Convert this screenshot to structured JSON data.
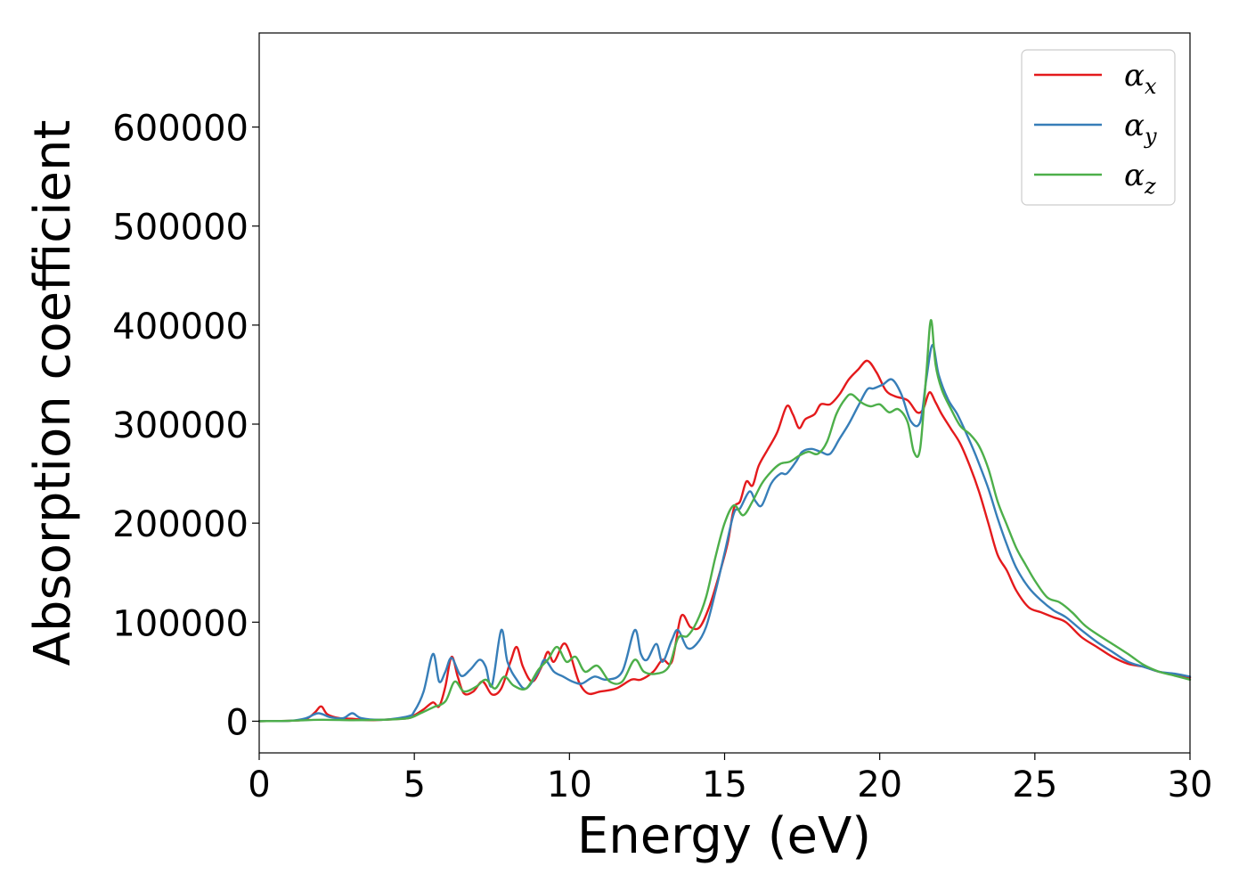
{
  "chart_data": {
    "type": "line",
    "title": "",
    "xlabel": "Energy (eV)",
    "ylabel": "Absorption coefficient",
    "xlim": [
      0,
      30
    ],
    "ylim": [
      -32000,
      695000
    ],
    "xticks": [
      0,
      5,
      10,
      15,
      20,
      25,
      30
    ],
    "yticks": [
      0,
      100000,
      200000,
      300000,
      400000,
      500000,
      600000
    ],
    "grid": false,
    "legend_position": "top-right",
    "series": [
      {
        "name": "α_x",
        "legend_base": "α",
        "legend_sub": "x",
        "color": "#e41a1c",
        "points": [
          [
            0,
            0
          ],
          [
            1.0,
            500
          ],
          [
            1.5,
            2000
          ],
          [
            1.8,
            9000
          ],
          [
            2.0,
            15000
          ],
          [
            2.2,
            7000
          ],
          [
            2.6,
            3000
          ],
          [
            3.0,
            2500
          ],
          [
            3.5,
            1000
          ],
          [
            4.0,
            1500
          ],
          [
            4.8,
            3000
          ],
          [
            5.0,
            6000
          ],
          [
            5.3,
            12000
          ],
          [
            5.6,
            19000
          ],
          [
            5.8,
            15000
          ],
          [
            6.0,
            35000
          ],
          [
            6.2,
            65000
          ],
          [
            6.4,
            45000
          ],
          [
            6.6,
            28000
          ],
          [
            6.9,
            30000
          ],
          [
            7.2,
            40000
          ],
          [
            7.5,
            27000
          ],
          [
            7.8,
            33000
          ],
          [
            8.1,
            60000
          ],
          [
            8.3,
            75000
          ],
          [
            8.5,
            55000
          ],
          [
            8.8,
            40000
          ],
          [
            9.1,
            55000
          ],
          [
            9.3,
            70000
          ],
          [
            9.5,
            60000
          ],
          [
            9.8,
            78000
          ],
          [
            10.0,
            70000
          ],
          [
            10.3,
            40000
          ],
          [
            10.6,
            28000
          ],
          [
            11.0,
            30000
          ],
          [
            11.5,
            33000
          ],
          [
            12.0,
            42000
          ],
          [
            12.3,
            42000
          ],
          [
            12.7,
            50000
          ],
          [
            13.0,
            62000
          ],
          [
            13.3,
            60000
          ],
          [
            13.6,
            106000
          ],
          [
            13.9,
            95000
          ],
          [
            14.2,
            95000
          ],
          [
            14.5,
            115000
          ],
          [
            14.8,
            145000
          ],
          [
            15.1,
            180000
          ],
          [
            15.3,
            215000
          ],
          [
            15.5,
            222000
          ],
          [
            15.7,
            242000
          ],
          [
            15.9,
            238000
          ],
          [
            16.1,
            258000
          ],
          [
            16.4,
            275000
          ],
          [
            16.7,
            292000
          ],
          [
            17.0,
            318000
          ],
          [
            17.2,
            310000
          ],
          [
            17.4,
            296000
          ],
          [
            17.6,
            305000
          ],
          [
            17.9,
            310000
          ],
          [
            18.1,
            320000
          ],
          [
            18.4,
            320000
          ],
          [
            18.7,
            330000
          ],
          [
            19.0,
            345000
          ],
          [
            19.3,
            355000
          ],
          [
            19.6,
            364000
          ],
          [
            19.9,
            352000
          ],
          [
            20.2,
            334000
          ],
          [
            20.5,
            328000
          ],
          [
            20.9,
            324000
          ],
          [
            21.2,
            312000
          ],
          [
            21.4,
            315000
          ],
          [
            21.6,
            332000
          ],
          [
            21.8,
            322000
          ],
          [
            22.0,
            310000
          ],
          [
            22.3,
            295000
          ],
          [
            22.6,
            280000
          ],
          [
            22.9,
            258000
          ],
          [
            23.2,
            232000
          ],
          [
            23.5,
            200000
          ],
          [
            23.8,
            168000
          ],
          [
            24.1,
            152000
          ],
          [
            24.4,
            132000
          ],
          [
            24.8,
            115000
          ],
          [
            25.2,
            110000
          ],
          [
            25.6,
            105000
          ],
          [
            26.0,
            100000
          ],
          [
            26.5,
            85000
          ],
          [
            27.0,
            75000
          ],
          [
            27.5,
            65000
          ],
          [
            28.0,
            58000
          ],
          [
            28.5,
            55000
          ],
          [
            29.0,
            50000
          ],
          [
            29.5,
            47000
          ],
          [
            30.0,
            44000
          ]
        ]
      },
      {
        "name": "α_y",
        "legend_base": "α",
        "legend_sub": "y",
        "color": "#377eb8",
        "points": [
          [
            0,
            0
          ],
          [
            1.0,
            500
          ],
          [
            1.5,
            3000
          ],
          [
            1.9,
            8000
          ],
          [
            2.3,
            4000
          ],
          [
            2.7,
            3000
          ],
          [
            3.0,
            8000
          ],
          [
            3.3,
            3000
          ],
          [
            4.0,
            1500
          ],
          [
            4.8,
            5000
          ],
          [
            5.0,
            10000
          ],
          [
            5.3,
            30000
          ],
          [
            5.6,
            68000
          ],
          [
            5.8,
            40000
          ],
          [
            6.0,
            50000
          ],
          [
            6.2,
            64000
          ],
          [
            6.5,
            46000
          ],
          [
            6.8,
            52000
          ],
          [
            7.1,
            62000
          ],
          [
            7.3,
            55000
          ],
          [
            7.5,
            36000
          ],
          [
            7.8,
            92000
          ],
          [
            8.0,
            60000
          ],
          [
            8.3,
            42000
          ],
          [
            8.6,
            33000
          ],
          [
            9.0,
            50000
          ],
          [
            9.2,
            62000
          ],
          [
            9.5,
            50000
          ],
          [
            9.8,
            45000
          ],
          [
            10.1,
            40000
          ],
          [
            10.4,
            38000
          ],
          [
            10.8,
            45000
          ],
          [
            11.2,
            42000
          ],
          [
            11.7,
            50000
          ],
          [
            12.1,
            92000
          ],
          [
            12.3,
            68000
          ],
          [
            12.5,
            62000
          ],
          [
            12.8,
            78000
          ],
          [
            13.0,
            60000
          ],
          [
            13.3,
            82000
          ],
          [
            13.5,
            92000
          ],
          [
            13.8,
            74000
          ],
          [
            14.1,
            78000
          ],
          [
            14.4,
            95000
          ],
          [
            14.7,
            130000
          ],
          [
            15.0,
            170000
          ],
          [
            15.3,
            210000
          ],
          [
            15.5,
            215000
          ],
          [
            15.8,
            232000
          ],
          [
            16.0,
            222000
          ],
          [
            16.2,
            218000
          ],
          [
            16.5,
            240000
          ],
          [
            16.8,
            250000
          ],
          [
            17.0,
            250000
          ],
          [
            17.3,
            262000
          ],
          [
            17.5,
            272000
          ],
          [
            17.8,
            275000
          ],
          [
            18.1,
            272000
          ],
          [
            18.4,
            270000
          ],
          [
            18.7,
            285000
          ],
          [
            19.0,
            300000
          ],
          [
            19.3,
            318000
          ],
          [
            19.6,
            335000
          ],
          [
            19.8,
            336000
          ],
          [
            20.1,
            340000
          ],
          [
            20.4,
            345000
          ],
          [
            20.7,
            330000
          ],
          [
            21.0,
            303000
          ],
          [
            21.3,
            302000
          ],
          [
            21.5,
            345000
          ],
          [
            21.7,
            380000
          ],
          [
            21.9,
            350000
          ],
          [
            22.2,
            325000
          ],
          [
            22.5,
            310000
          ],
          [
            22.8,
            290000
          ],
          [
            23.1,
            268000
          ],
          [
            23.5,
            235000
          ],
          [
            23.8,
            205000
          ],
          [
            24.1,
            178000
          ],
          [
            24.4,
            155000
          ],
          [
            24.8,
            135000
          ],
          [
            25.2,
            122000
          ],
          [
            25.6,
            112000
          ],
          [
            26.0,
            105000
          ],
          [
            26.5,
            92000
          ],
          [
            27.0,
            80000
          ],
          [
            27.5,
            70000
          ],
          [
            28.0,
            60000
          ],
          [
            28.5,
            55000
          ],
          [
            29.0,
            50000
          ],
          [
            29.5,
            48000
          ],
          [
            30.0,
            45000
          ]
        ]
      },
      {
        "name": "α_z",
        "legend_base": "α",
        "legend_sub": "z",
        "color": "#4daf4a",
        "points": [
          [
            0,
            0
          ],
          [
            1.0,
            500
          ],
          [
            2.0,
            1500
          ],
          [
            3.0,
            1000
          ],
          [
            4.0,
            1500
          ],
          [
            4.8,
            3000
          ],
          [
            5.2,
            8000
          ],
          [
            5.6,
            14000
          ],
          [
            6.0,
            20000
          ],
          [
            6.3,
            40000
          ],
          [
            6.6,
            30000
          ],
          [
            7.0,
            35000
          ],
          [
            7.3,
            42000
          ],
          [
            7.6,
            33000
          ],
          [
            7.9,
            45000
          ],
          [
            8.2,
            36000
          ],
          [
            8.6,
            33000
          ],
          [
            9.0,
            52000
          ],
          [
            9.3,
            62000
          ],
          [
            9.6,
            75000
          ],
          [
            9.9,
            60000
          ],
          [
            10.2,
            65000
          ],
          [
            10.5,
            50000
          ],
          [
            10.9,
            56000
          ],
          [
            11.3,
            40000
          ],
          [
            11.7,
            40000
          ],
          [
            12.1,
            62000
          ],
          [
            12.4,
            50000
          ],
          [
            12.8,
            48000
          ],
          [
            13.2,
            55000
          ],
          [
            13.5,
            84000
          ],
          [
            13.8,
            86000
          ],
          [
            14.1,
            100000
          ],
          [
            14.4,
            125000
          ],
          [
            14.7,
            165000
          ],
          [
            15.0,
            200000
          ],
          [
            15.3,
            218000
          ],
          [
            15.6,
            208000
          ],
          [
            15.9,
            222000
          ],
          [
            16.2,
            240000
          ],
          [
            16.5,
            252000
          ],
          [
            16.8,
            260000
          ],
          [
            17.1,
            262000
          ],
          [
            17.4,
            268000
          ],
          [
            17.7,
            272000
          ],
          [
            18.0,
            270000
          ],
          [
            18.3,
            282000
          ],
          [
            18.6,
            310000
          ],
          [
            18.9,
            326000
          ],
          [
            19.1,
            330000
          ],
          [
            19.4,
            322000
          ],
          [
            19.7,
            318000
          ],
          [
            20.0,
            320000
          ],
          [
            20.3,
            312000
          ],
          [
            20.6,
            315000
          ],
          [
            20.9,
            302000
          ],
          [
            21.1,
            272000
          ],
          [
            21.3,
            275000
          ],
          [
            21.5,
            350000
          ],
          [
            21.65,
            405000
          ],
          [
            21.8,
            360000
          ],
          [
            22.0,
            335000
          ],
          [
            22.3,
            315000
          ],
          [
            22.6,
            298000
          ],
          [
            22.9,
            290000
          ],
          [
            23.2,
            278000
          ],
          [
            23.5,
            255000
          ],
          [
            23.8,
            222000
          ],
          [
            24.1,
            198000
          ],
          [
            24.4,
            175000
          ],
          [
            24.7,
            158000
          ],
          [
            25.0,
            142000
          ],
          [
            25.4,
            125000
          ],
          [
            25.8,
            120000
          ],
          [
            26.2,
            110000
          ],
          [
            26.6,
            97000
          ],
          [
            27.0,
            88000
          ],
          [
            27.5,
            78000
          ],
          [
            28.0,
            68000
          ],
          [
            28.5,
            57000
          ],
          [
            29.0,
            50000
          ],
          [
            29.5,
            46000
          ],
          [
            30.0,
            42000
          ]
        ]
      }
    ]
  }
}
